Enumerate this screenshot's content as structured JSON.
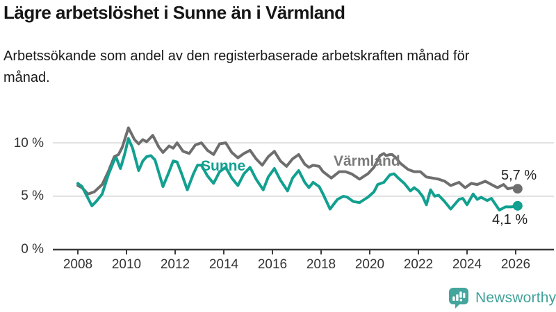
{
  "header": {
    "title": "Lägre arbetslöshet i Sunne än i Värmland",
    "subtitle": "Arbetssökande som andel av den registerbaserade arbetskraften månad för månad."
  },
  "chart_data": {
    "type": "line",
    "unit": "%",
    "x_axis": {
      "ticks": [
        2008,
        2010,
        2012,
        2014,
        2016,
        2018,
        2020,
        2022,
        2024,
        2026
      ],
      "tick_labels": [
        "2008",
        "2010",
        "2012",
        "2014",
        "2016",
        "2018",
        "2020",
        "2022",
        "2024",
        "2026"
      ],
      "range": [
        2007.9,
        2026.6
      ]
    },
    "y_axis": {
      "ticks": [
        0,
        5,
        10
      ],
      "tick_labels": [
        "0 %",
        "5 %",
        "10 %"
      ],
      "gridlines": [
        5,
        10
      ],
      "range": [
        0,
        12.5
      ]
    },
    "style": {
      "gridline_color": "#d9d9d9",
      "axis_color": "#3b3b3b",
      "background": "#ffffff"
    },
    "series": [
      {
        "name": "Sunne",
        "slug": "sunne",
        "color": "#12a090",
        "end_label": "4,1 %",
        "end_value": 4.1,
        "points": [
          [
            2008.0,
            6.2
          ],
          [
            2008.17,
            5.9
          ],
          [
            2008.33,
            5.2
          ],
          [
            2008.58,
            4.1
          ],
          [
            2008.75,
            4.5
          ],
          [
            2009.0,
            5.2
          ],
          [
            2009.25,
            7.0
          ],
          [
            2009.5,
            8.4
          ],
          [
            2009.58,
            8.6
          ],
          [
            2009.75,
            7.6
          ],
          [
            2009.92,
            8.9
          ],
          [
            2010.08,
            10.4
          ],
          [
            2010.25,
            9.5
          ],
          [
            2010.5,
            7.4
          ],
          [
            2010.67,
            8.3
          ],
          [
            2010.83,
            8.7
          ],
          [
            2011.0,
            8.8
          ],
          [
            2011.17,
            8.4
          ],
          [
            2011.5,
            5.9
          ],
          [
            2011.75,
            7.3
          ],
          [
            2011.92,
            8.3
          ],
          [
            2012.08,
            8.2
          ],
          [
            2012.25,
            7.2
          ],
          [
            2012.5,
            5.6
          ],
          [
            2012.75,
            7.1
          ],
          [
            2012.92,
            7.9
          ],
          [
            2013.08,
            7.9
          ],
          [
            2013.33,
            6.9
          ],
          [
            2013.58,
            6.2
          ],
          [
            2013.83,
            7.3
          ],
          [
            2014.08,
            7.7
          ],
          [
            2014.33,
            6.7
          ],
          [
            2014.58,
            6.0
          ],
          [
            2014.83,
            7.1
          ],
          [
            2015.08,
            7.7
          ],
          [
            2015.33,
            6.6
          ],
          [
            2015.62,
            5.6
          ],
          [
            2015.83,
            6.8
          ],
          [
            2016.08,
            7.6
          ],
          [
            2016.33,
            6.5
          ],
          [
            2016.62,
            5.5
          ],
          [
            2016.83,
            6.7
          ],
          [
            2017.08,
            7.4
          ],
          [
            2017.33,
            6.3
          ],
          [
            2017.5,
            5.8
          ],
          [
            2017.67,
            6.3
          ],
          [
            2017.92,
            5.9
          ],
          [
            2018.08,
            5.2
          ],
          [
            2018.37,
            3.8
          ],
          [
            2018.67,
            4.7
          ],
          [
            2018.92,
            5.0
          ],
          [
            2019.08,
            4.9
          ],
          [
            2019.33,
            4.5
          ],
          [
            2019.58,
            4.4
          ],
          [
            2019.92,
            4.9
          ],
          [
            2020.17,
            5.4
          ],
          [
            2020.33,
            6.1
          ],
          [
            2020.58,
            6.3
          ],
          [
            2020.83,
            7.0
          ],
          [
            2021.0,
            7.1
          ],
          [
            2021.17,
            6.7
          ],
          [
            2021.42,
            6.2
          ],
          [
            2021.67,
            5.5
          ],
          [
            2021.83,
            5.8
          ],
          [
            2022.0,
            5.5
          ],
          [
            2022.17,
            5.0
          ],
          [
            2022.33,
            4.2
          ],
          [
            2022.5,
            5.6
          ],
          [
            2022.67,
            5.0
          ],
          [
            2022.83,
            5.1
          ],
          [
            2023.08,
            4.5
          ],
          [
            2023.33,
            3.8
          ],
          [
            2023.67,
            4.7
          ],
          [
            2023.83,
            4.8
          ],
          [
            2024.0,
            4.2
          ],
          [
            2024.25,
            5.2
          ],
          [
            2024.42,
            4.7
          ],
          [
            2024.58,
            4.9
          ],
          [
            2024.83,
            4.6
          ],
          [
            2025.0,
            4.8
          ],
          [
            2025.33,
            3.7
          ],
          [
            2025.58,
            4.0
          ],
          [
            2025.83,
            4.0
          ],
          [
            2026.08,
            4.1
          ]
        ]
      },
      {
        "name": "Värmland",
        "slug": "varmland",
        "color": "#6e6e6e",
        "end_label": "5,7 %",
        "end_value": 5.7,
        "points": [
          [
            2008.0,
            6.0
          ],
          [
            2008.17,
            5.8
          ],
          [
            2008.42,
            5.2
          ],
          [
            2008.67,
            5.4
          ],
          [
            2009.0,
            6.1
          ],
          [
            2009.25,
            7.3
          ],
          [
            2009.5,
            8.7
          ],
          [
            2009.67,
            8.9
          ],
          [
            2009.83,
            9.6
          ],
          [
            2010.08,
            11.4
          ],
          [
            2010.33,
            10.3
          ],
          [
            2010.5,
            9.9
          ],
          [
            2010.67,
            10.3
          ],
          [
            2010.83,
            10.1
          ],
          [
            2011.08,
            10.7
          ],
          [
            2011.33,
            9.6
          ],
          [
            2011.5,
            9.1
          ],
          [
            2011.75,
            9.7
          ],
          [
            2011.92,
            9.5
          ],
          [
            2012.08,
            10.0
          ],
          [
            2012.33,
            9.2
          ],
          [
            2012.58,
            9.0
          ],
          [
            2012.83,
            9.8
          ],
          [
            2013.08,
            10.0
          ],
          [
            2013.33,
            9.3
          ],
          [
            2013.58,
            8.9
          ],
          [
            2013.83,
            9.9
          ],
          [
            2014.08,
            10.0
          ],
          [
            2014.33,
            9.1
          ],
          [
            2014.58,
            8.6
          ],
          [
            2014.83,
            9.0
          ],
          [
            2015.08,
            9.3
          ],
          [
            2015.33,
            8.5
          ],
          [
            2015.58,
            7.9
          ],
          [
            2015.83,
            8.7
          ],
          [
            2016.08,
            9.2
          ],
          [
            2016.33,
            8.3
          ],
          [
            2016.58,
            7.8
          ],
          [
            2016.83,
            8.5
          ],
          [
            2017.08,
            8.9
          ],
          [
            2017.33,
            8.0
          ],
          [
            2017.5,
            7.7
          ],
          [
            2017.67,
            7.9
          ],
          [
            2017.92,
            7.8
          ],
          [
            2018.08,
            7.3
          ],
          [
            2018.42,
            6.7
          ],
          [
            2018.75,
            7.3
          ],
          [
            2019.0,
            7.3
          ],
          [
            2019.25,
            7.1
          ],
          [
            2019.58,
            6.6
          ],
          [
            2019.92,
            7.1
          ],
          [
            2020.17,
            7.7
          ],
          [
            2020.42,
            8.8
          ],
          [
            2020.58,
            9.0
          ],
          [
            2020.67,
            8.8
          ],
          [
            2020.83,
            8.9
          ],
          [
            2020.92,
            8.9
          ],
          [
            2021.08,
            8.6
          ],
          [
            2021.25,
            8.1
          ],
          [
            2021.58,
            7.5
          ],
          [
            2021.83,
            7.3
          ],
          [
            2022.08,
            7.3
          ],
          [
            2022.33,
            6.8
          ],
          [
            2022.58,
            6.7
          ],
          [
            2022.83,
            6.6
          ],
          [
            2023.08,
            6.4
          ],
          [
            2023.33,
            6.0
          ],
          [
            2023.67,
            6.3
          ],
          [
            2023.92,
            5.8
          ],
          [
            2024.17,
            6.2
          ],
          [
            2024.42,
            6.1
          ],
          [
            2024.75,
            6.4
          ],
          [
            2025.0,
            6.1
          ],
          [
            2025.25,
            5.8
          ],
          [
            2025.5,
            6.1
          ],
          [
            2025.67,
            5.7
          ],
          [
            2025.92,
            5.8
          ],
          [
            2026.08,
            5.7
          ]
        ]
      }
    ]
  },
  "footer": {
    "brand": "Newsworthy"
  }
}
